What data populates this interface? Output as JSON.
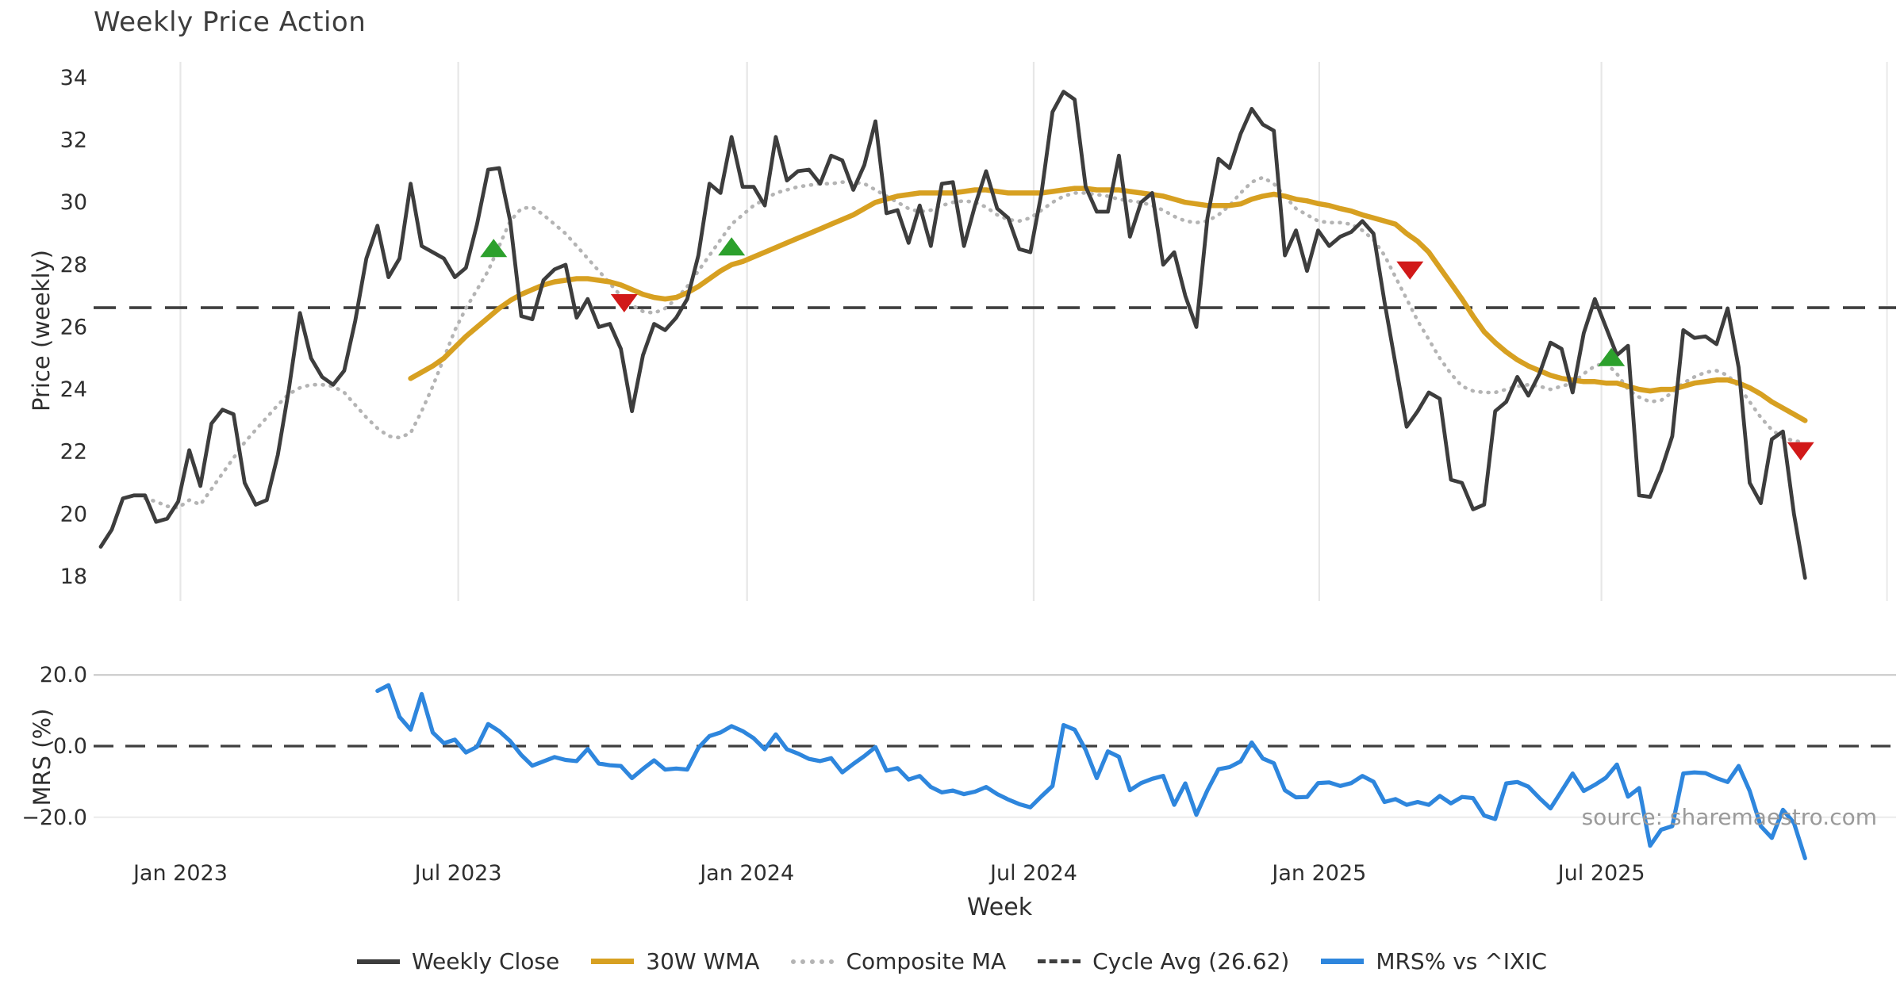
{
  "title": "Weekly Price Action",
  "source_note": "source: sharemaestro.com",
  "axis_titles": {
    "price": "Price (weekly)",
    "mrs": "MRS (%)",
    "x": "Week"
  },
  "legend": [
    {
      "label": "Weekly Close",
      "swatch": "solid-dark-line"
    },
    {
      "label": "30W WMA",
      "swatch": "solid-gold-line"
    },
    {
      "label": "Composite MA",
      "swatch": "dotted-gray-line"
    },
    {
      "label": "Cycle Avg (26.62)",
      "swatch": "dashed-dark-line"
    },
    {
      "label": "MRS% vs ^IXIC",
      "swatch": "solid-blue-line"
    }
  ],
  "colors": {
    "weekly_close": "#3d3d3d",
    "wma30": "#d7a021",
    "composite": "#b4b4b4",
    "cycle_avg": "#3f3f3f",
    "mrs": "#2e86dd",
    "buy_marker": "#2ca02c",
    "sell_marker": "#d11919",
    "grid": "#e7e7e7",
    "grid_strong": "#c6c6c6",
    "grid_faint": "#ebebeb",
    "tick_text": "#2e2e2e"
  },
  "chart_data": {
    "type": "line",
    "title": "Weekly Price Action",
    "xlabel": "Week",
    "x_unit": "week-index (weekly data, index 0 = mid-Nov 2022)",
    "x_ticks": [
      {
        "week": 7.2,
        "label": "Jan 2023"
      },
      {
        "week": 32.3,
        "label": "Jul 2023"
      },
      {
        "week": 58.4,
        "label": "Jan 2024"
      },
      {
        "week": 84.3,
        "label": "Jul 2024"
      },
      {
        "week": 110.1,
        "label": "Jan 2025"
      },
      {
        "week": 135.6,
        "label": "Jul 2025"
      }
    ],
    "extra_gridline_week": 161.4,
    "panels": [
      {
        "id": "price",
        "ylabel": "Price (weekly)",
        "yticks": [
          34,
          32,
          30,
          28,
          26,
          24,
          22,
          20,
          18
        ],
        "ylim": [
          17.1,
          34.5
        ],
        "grid": "vertical-only",
        "hline": {
          "value": 26.62,
          "style": "dashed",
          "name": "cycle-average"
        }
      },
      {
        "id": "mrs",
        "ylabel": "MRS (%)",
        "yticks": [
          20.0,
          0.0,
          -20.0
        ],
        "ytick_labels": [
          "20.0",
          "0.0",
          "−20.0"
        ],
        "ylim": [
          -33.5,
          23.5
        ],
        "grid": "horizontal-only",
        "hline": {
          "value": 0.0,
          "style": "dashed",
          "name": "zero-line"
        }
      }
    ],
    "series": [
      {
        "name": "Weekly Close",
        "panel": "price",
        "start_week": 0,
        "line": "solid",
        "values": [
          18.95,
          19.5,
          20.5,
          20.6,
          20.6,
          19.75,
          19.85,
          20.4,
          22.05,
          20.9,
          22.9,
          23.35,
          23.2,
          21.0,
          20.3,
          20.45,
          21.9,
          24.0,
          26.45,
          25.0,
          24.4,
          24.15,
          24.6,
          26.2,
          28.2,
          29.25,
          27.6,
          28.2,
          30.6,
          28.6,
          28.4,
          28.2,
          27.6,
          27.9,
          29.3,
          31.05,
          31.1,
          29.4,
          26.35,
          26.25,
          27.5,
          27.85,
          28.0,
          26.3,
          26.9,
          26.0,
          26.1,
          25.3,
          23.3,
          25.1,
          26.1,
          25.9,
          26.3,
          26.9,
          28.3,
          30.6,
          30.3,
          32.1,
          30.5,
          30.5,
          29.9,
          32.1,
          30.7,
          31.0,
          31.05,
          30.6,
          31.5,
          31.35,
          30.4,
          31.2,
          32.6,
          29.65,
          29.75,
          28.7,
          29.9,
          28.6,
          30.6,
          30.65,
          28.6,
          29.9,
          31.0,
          29.8,
          29.5,
          28.5,
          28.4,
          30.3,
          32.9,
          33.55,
          33.3,
          30.5,
          29.7,
          29.7,
          31.5,
          28.9,
          30.0,
          30.3,
          28.0,
          28.4,
          27.0,
          26.0,
          29.5,
          31.4,
          31.1,
          32.2,
          33.0,
          32.5,
          32.3,
          28.3,
          29.1,
          27.8,
          29.1,
          28.6,
          28.9,
          29.05,
          29.4,
          29.0,
          26.8,
          24.8,
          22.8,
          23.3,
          23.9,
          23.7,
          21.1,
          21.0,
          20.15,
          20.3,
          23.3,
          23.6,
          24.4,
          23.8,
          24.5,
          25.5,
          25.3,
          23.9,
          25.8,
          26.9,
          26.0,
          25.1,
          25.4,
          20.6,
          20.55,
          21.4,
          22.5,
          25.9,
          25.65,
          25.7,
          25.45,
          26.6,
          24.7,
          21.0,
          20.35,
          22.4,
          22.65,
          20.0,
          17.95
        ]
      },
      {
        "name": "Composite MA",
        "panel": "price",
        "start_week": 4,
        "line": "dotted",
        "values": [
          20.5,
          20.4,
          20.25,
          20.2,
          20.45,
          20.3,
          20.8,
          21.3,
          21.8,
          22.3,
          22.7,
          23.1,
          23.5,
          23.85,
          24.05,
          24.15,
          24.15,
          24.1,
          23.9,
          23.5,
          23.1,
          22.75,
          22.5,
          22.45,
          22.6,
          23.3,
          24.1,
          25.0,
          25.9,
          26.6,
          27.2,
          27.8,
          28.6,
          29.4,
          29.8,
          29.85,
          29.6,
          29.3,
          29.0,
          28.6,
          28.2,
          27.8,
          27.4,
          27.0,
          26.7,
          26.5,
          26.45,
          26.6,
          26.9,
          27.3,
          27.8,
          28.3,
          28.8,
          29.3,
          29.6,
          29.9,
          30.1,
          30.3,
          30.4,
          30.5,
          30.55,
          30.6,
          30.6,
          30.65,
          30.65,
          30.6,
          30.4,
          30.2,
          30.0,
          29.8,
          29.7,
          29.75,
          29.9,
          30.0,
          30.05,
          30.0,
          29.85,
          29.6,
          29.45,
          29.4,
          29.5,
          29.75,
          30.0,
          30.2,
          30.3,
          30.3,
          30.25,
          30.2,
          30.1,
          30.05,
          30.0,
          29.9,
          29.75,
          29.55,
          29.4,
          29.35,
          29.4,
          29.6,
          29.9,
          30.3,
          30.65,
          30.8,
          30.6,
          30.2,
          29.8,
          29.6,
          29.4,
          29.35,
          29.35,
          29.3,
          29.1,
          28.8,
          28.3,
          27.6,
          26.9,
          26.2,
          25.6,
          25.0,
          24.5,
          24.1,
          23.95,
          23.9,
          23.9,
          24.0,
          24.1,
          24.15,
          24.1,
          24.0,
          24.1,
          24.2,
          24.5,
          24.75,
          24.85,
          24.5,
          24.0,
          23.75,
          23.6,
          23.65,
          23.9,
          24.2,
          24.4,
          24.55,
          24.6,
          24.45,
          24.1,
          23.6,
          23.1,
          22.7,
          22.45,
          22.35,
          22.3
        ]
      },
      {
        "name": "30W WMA",
        "panel": "price",
        "start_week": 28,
        "line": "solid",
        "values": [
          24.35,
          24.55,
          24.75,
          25.0,
          25.35,
          25.7,
          26.0,
          26.3,
          26.6,
          26.85,
          27.05,
          27.2,
          27.35,
          27.45,
          27.5,
          27.55,
          27.55,
          27.5,
          27.45,
          27.35,
          27.2,
          27.05,
          26.95,
          26.9,
          26.95,
          27.1,
          27.3,
          27.55,
          27.8,
          28.0,
          28.1,
          28.25,
          28.4,
          28.55,
          28.7,
          28.85,
          29.0,
          29.15,
          29.3,
          29.45,
          29.6,
          29.8,
          30.0,
          30.1,
          30.2,
          30.25,
          30.3,
          30.3,
          30.3,
          30.3,
          30.35,
          30.4,
          30.4,
          30.35,
          30.3,
          30.3,
          30.3,
          30.3,
          30.35,
          30.4,
          30.45,
          30.45,
          30.4,
          30.4,
          30.4,
          30.35,
          30.3,
          30.25,
          30.2,
          30.1,
          30.0,
          29.95,
          29.9,
          29.9,
          29.9,
          29.95,
          30.1,
          30.2,
          30.26,
          30.2,
          30.1,
          30.05,
          29.96,
          29.9,
          29.8,
          29.72,
          29.6,
          29.5,
          29.4,
          29.3,
          29.0,
          28.75,
          28.4,
          27.9,
          27.4,
          26.9,
          26.35,
          25.85,
          25.5,
          25.2,
          24.95,
          24.75,
          24.6,
          24.45,
          24.35,
          24.3,
          24.25,
          24.25,
          24.2,
          24.2,
          24.1,
          24.0,
          23.95,
          24.0,
          24.0,
          24.1,
          24.2,
          24.25,
          24.3,
          24.3,
          24.2,
          24.05,
          23.85,
          23.6,
          23.4,
          23.2,
          23.0
        ]
      },
      {
        "name": "MRS% vs ^IXIC",
        "panel": "mrs",
        "start_week": 25,
        "line": "solid",
        "values": [
          15.5,
          17.1,
          8.2,
          4.6,
          14.6,
          3.8,
          0.8,
          1.8,
          -1.8,
          -0.2,
          6.2,
          4.2,
          1.4,
          -2.5,
          -5.5,
          -4.3,
          -3.1,
          -3.9,
          -4.2,
          -0.8,
          -4.9,
          -5.4,
          -5.6,
          -9.0,
          -6.4,
          -4.0,
          -6.6,
          -6.3,
          -6.6,
          -0.5,
          2.8,
          3.8,
          5.6,
          4.2,
          2.2,
          -0.9,
          3.3,
          -0.9,
          -2.1,
          -3.6,
          -4.2,
          -3.4,
          -7.4,
          -5.0,
          -2.8,
          -0.3,
          -6.9,
          -6.2,
          -9.4,
          -8.4,
          -11.5,
          -13.0,
          -12.5,
          -13.5,
          -12.8,
          -11.5,
          -13.5,
          -15.0,
          -16.3,
          -17.2,
          -14.1,
          -11.2,
          5.9,
          4.6,
          -1.1,
          -9.0,
          -1.5,
          -3.0,
          -12.4,
          -10.4,
          -9.2,
          -8.4,
          -16.5,
          -10.5,
          -19.3,
          -12.4,
          -6.5,
          -5.9,
          -4.3,
          1.0,
          -3.5,
          -4.8,
          -12.4,
          -14.4,
          -14.3,
          -10.4,
          -10.2,
          -11.2,
          -10.4,
          -8.4,
          -10.0,
          -15.7,
          -14.9,
          -16.5,
          -15.7,
          -16.5,
          -14.0,
          -16.1,
          -14.3,
          -14.6,
          -19.5,
          -20.5,
          -10.5,
          -10.1,
          -11.4,
          -14.6,
          -17.5,
          -12.6,
          -7.7,
          -12.6,
          -10.9,
          -8.9,
          -5.2,
          -14.2,
          -11.8,
          -28.0,
          -23.5,
          -22.5,
          -7.7,
          -7.4,
          -7.6,
          -9.0,
          -10.1,
          -5.6,
          -12.6,
          -22.5,
          -25.8,
          -17.9,
          -21.6,
          -31.5
        ]
      }
    ],
    "signals": {
      "buy": {
        "marker": "triangle-up",
        "weeks": [
          35.5,
          57.0,
          136.5
        ],
        "values": [
          28.5,
          28.55,
          25.0
        ]
      },
      "sell": {
        "marker": "triangle-down",
        "weeks": [
          47.3,
          118.3,
          153.6
        ],
        "values": [
          26.8,
          27.85,
          22.05
        ]
      }
    },
    "cycle_avg": 26.62,
    "legend_position": "bottom-center",
    "annotations": [
      "source: sharemaestro.com"
    ]
  }
}
